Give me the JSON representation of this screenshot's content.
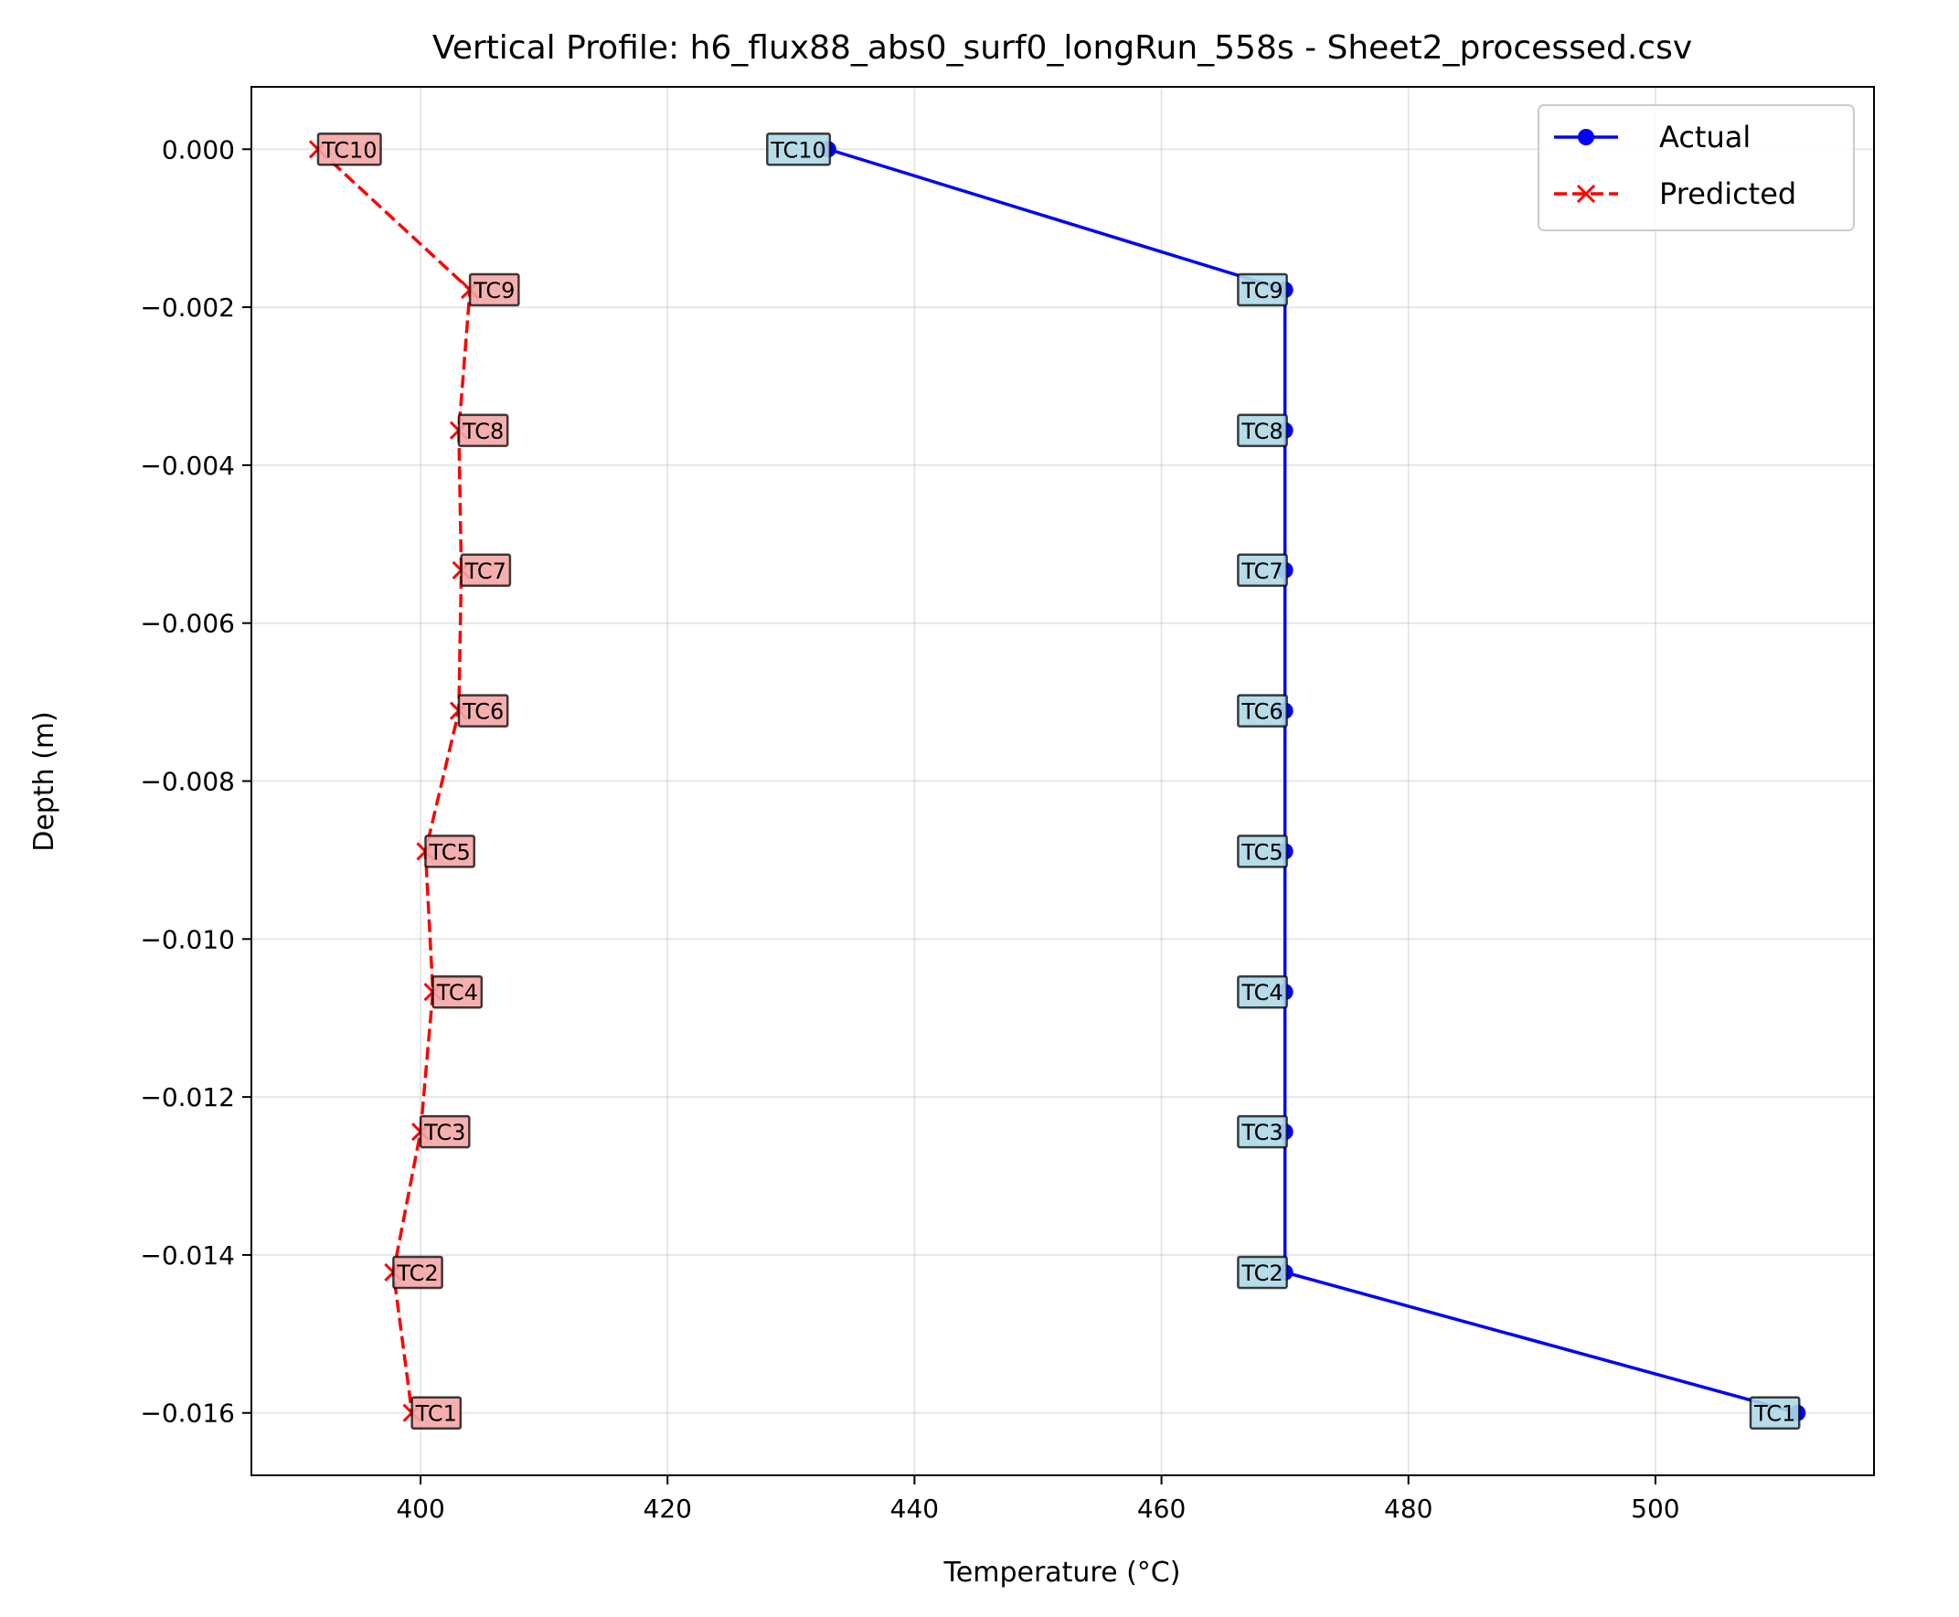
{
  "chart_data": {
    "type": "line",
    "title": "Vertical Profile: h6_flux88_abs0_surf0_longRun_558s - Sheet2_processed.csv",
    "xlabel": "Temperature (°C)",
    "ylabel": "Depth (m)",
    "xlim": [
      386.3,
      517.7
    ],
    "ylim": [
      -0.01679,
      0.00079
    ],
    "x_ticks": [
      400,
      420,
      440,
      460,
      480,
      500
    ],
    "x_tick_labels": [
      "400",
      "420",
      "440",
      "460",
      "480",
      "500"
    ],
    "y_ticks": [
      0.0,
      -0.002,
      -0.004,
      -0.006,
      -0.008,
      -0.01,
      -0.012,
      -0.014,
      -0.016
    ],
    "y_tick_labels": [
      "0.000",
      "−0.002",
      "−0.004",
      "−0.006",
      "−0.008",
      "−0.010",
      "−0.012",
      "−0.014",
      "−0.016"
    ],
    "grid": true,
    "legend_position": "top-right",
    "series": [
      {
        "name": "Actual",
        "color": "#0000ff",
        "marker": "circle",
        "line_style": "solid",
        "label_bg": "#add8e6",
        "points": [
          {
            "label": "TC10",
            "x": 433.0,
            "y": 0.0
          },
          {
            "label": "TC9",
            "x": 470.0,
            "y": -0.00178
          },
          {
            "label": "TC8",
            "x": 470.0,
            "y": -0.00356
          },
          {
            "label": "TC7",
            "x": 470.0,
            "y": -0.00533
          },
          {
            "label": "TC6",
            "x": 470.0,
            "y": -0.00711
          },
          {
            "label": "TC5",
            "x": 470.0,
            "y": -0.00889
          },
          {
            "label": "TC4",
            "x": 470.0,
            "y": -0.01067
          },
          {
            "label": "TC3",
            "x": 470.0,
            "y": -0.01244
          },
          {
            "label": "TC2",
            "x": 470.0,
            "y": -0.01422
          },
          {
            "label": "TC1",
            "x": 511.5,
            "y": -0.016
          }
        ]
      },
      {
        "name": "Predicted",
        "color": "#ff0000",
        "marker": "x",
        "line_style": "dashed",
        "label_bg": "#f4a6a6",
        "points": [
          {
            "label": "TC10",
            "x": 391.7,
            "y": 0.0
          },
          {
            "label": "TC9",
            "x": 404.0,
            "y": -0.00178
          },
          {
            "label": "TC8",
            "x": 403.1,
            "y": -0.00356
          },
          {
            "label": "TC7",
            "x": 403.3,
            "y": -0.00533
          },
          {
            "label": "TC6",
            "x": 403.1,
            "y": -0.00711
          },
          {
            "label": "TC5",
            "x": 400.4,
            "y": -0.00889
          },
          {
            "label": "TC4",
            "x": 401.0,
            "y": -0.01067
          },
          {
            "label": "TC3",
            "x": 400.0,
            "y": -0.01244
          },
          {
            "label": "TC2",
            "x": 397.8,
            "y": -0.01422
          },
          {
            "label": "TC1",
            "x": 399.3,
            "y": -0.016
          }
        ]
      }
    ]
  }
}
